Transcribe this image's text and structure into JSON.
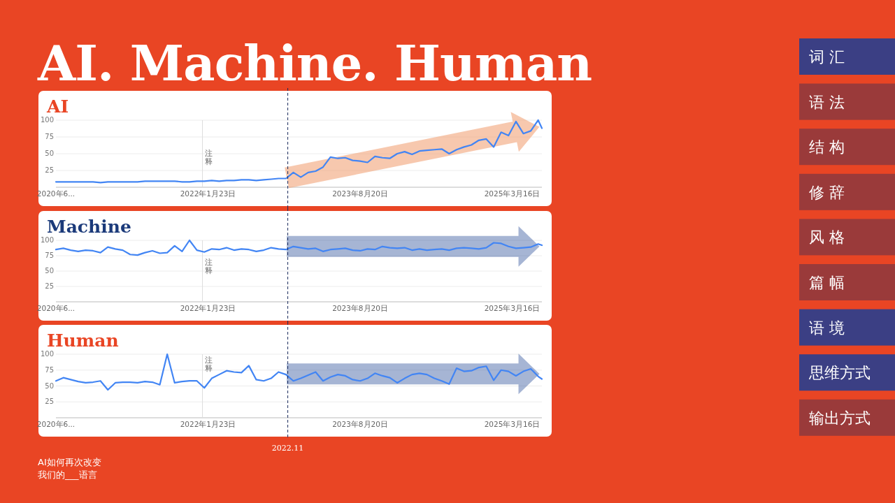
{
  "chart_data": [
    {
      "type": "other",
      "title": "AI. Machine. Human",
      "categories": [
        "词 汇",
        "语 法",
        "结 构",
        "修 辞",
        "风 格",
        "篇 幅",
        "语 境",
        "思维方式",
        "输出方式"
      ],
      "colors": [
        "#3b3f84",
        "#9a3a3a",
        "#9a3a3a",
        "#9a3a3a",
        "#9a3a3a",
        "#9a3a3a",
        "#3b3f84",
        "#3b3f84",
        "#9a3a3a"
      ],
      "annotations": [
        "AI如何再次改变",
        "我们的___语言"
      ]
    },
    {
      "type": "line",
      "title": "AI",
      "x": [
        "2020-06-28",
        "2020-07-26",
        "2020-08-23",
        "2020-09-20",
        "2020-10-18",
        "2020-11-15",
        "2020-12-13",
        "2021-01-10",
        "2021-02-07",
        "2021-03-07",
        "2021-04-04",
        "2021-05-02",
        "2021-05-30",
        "2021-06-27",
        "2021-07-25",
        "2021-08-22",
        "2021-09-19",
        "2021-10-17",
        "2021-11-14",
        "2021-12-12",
        "2022-01-09",
        "2022-02-06",
        "2022-03-06",
        "2022-04-03",
        "2022-05-01",
        "2022-05-29",
        "2022-06-26",
        "2022-07-24",
        "2022-08-21",
        "2022-09-18",
        "2022-10-16",
        "2022-11-13",
        "2022-12-11",
        "2023-01-08",
        "2023-02-05",
        "2023-03-05",
        "2023-04-02",
        "2023-04-30",
        "2023-05-28",
        "2023-06-25",
        "2023-07-23",
        "2023-08-20",
        "2023-09-17",
        "2023-10-15",
        "2023-11-12",
        "2023-12-10",
        "2024-01-07",
        "2024-02-04",
        "2024-03-03",
        "2024-03-31",
        "2024-04-28",
        "2024-05-26",
        "2024-06-23",
        "2024-07-21",
        "2024-08-18",
        "2024-09-15",
        "2024-10-13",
        "2024-11-10",
        "2024-12-08",
        "2025-01-05",
        "2025-02-02",
        "2025-03-02",
        "2025-03-30",
        "2025-04-27",
        "2025-05-25",
        "2025-06-22",
        "2025-07-06"
      ],
      "series": [
        {
          "color": "#4285f4",
          "values": [
            8,
            8,
            8,
            8,
            8,
            8,
            7,
            8,
            8,
            8,
            8,
            8,
            9,
            9,
            9,
            9,
            9,
            8,
            8,
            9,
            9,
            10,
            9,
            10,
            10,
            11,
            11,
            10,
            11,
            12,
            13,
            13,
            22,
            15,
            22,
            24,
            30,
            45,
            43,
            44,
            40,
            39,
            37,
            46,
            44,
            43,
            50,
            53,
            49,
            54,
            55,
            56,
            57,
            50,
            56,
            60,
            63,
            70,
            72,
            60,
            82,
            77,
            98,
            80,
            84,
            100,
            88
          ]
        }
      ],
      "xlim": [
        "2020-06-28",
        "2025-07-06"
      ],
      "xticks": [
        {
          "value": "2020-06-28",
          "label": "2020年6..."
        },
        {
          "value": "2022-01-23",
          "label": "2022年1月23日"
        },
        {
          "value": "2023-08-20",
          "label": "2023年8月20日"
        },
        {
          "value": "2025-03-16",
          "label": "2025年3月16日"
        }
      ],
      "ylim": [
        0,
        100
      ],
      "yticks": [
        25,
        50,
        75,
        100
      ],
      "grid": "y",
      "ref_lines": [
        {
          "axis": "x",
          "value": "2022-01-02",
          "label": "注释",
          "color": "#dddddd",
          "line_style": "solid"
        },
        {
          "axis": "x",
          "value": "2022-11-20",
          "label": null,
          "color": "#1a2a5c",
          "line_style": "dashed"
        }
      ]
    },
    {
      "type": "line",
      "title": "Machine",
      "x": [
        "2020-06-28",
        "2020-07-26",
        "2020-08-23",
        "2020-09-20",
        "2020-10-18",
        "2020-11-15",
        "2020-12-13",
        "2021-01-10",
        "2021-02-07",
        "2021-03-07",
        "2021-04-04",
        "2021-05-02",
        "2021-05-30",
        "2021-06-27",
        "2021-07-25",
        "2021-08-22",
        "2021-09-19",
        "2021-10-17",
        "2021-11-14",
        "2021-12-12",
        "2022-01-09",
        "2022-02-06",
        "2022-03-06",
        "2022-04-03",
        "2022-05-01",
        "2022-05-29",
        "2022-06-26",
        "2022-07-24",
        "2022-08-21",
        "2022-09-18",
        "2022-10-16",
        "2022-11-13",
        "2022-12-11",
        "2023-01-08",
        "2023-02-05",
        "2023-03-05",
        "2023-04-02",
        "2023-04-30",
        "2023-05-28",
        "2023-06-25",
        "2023-07-23",
        "2023-08-20",
        "2023-09-17",
        "2023-10-15",
        "2023-11-12",
        "2023-12-10",
        "2024-01-07",
        "2024-02-04",
        "2024-03-03",
        "2024-03-31",
        "2024-04-28",
        "2024-05-26",
        "2024-06-23",
        "2024-07-21",
        "2024-08-18",
        "2024-09-15",
        "2024-10-13",
        "2024-11-10",
        "2024-12-08",
        "2025-01-05",
        "2025-02-02",
        "2025-03-02",
        "2025-03-30",
        "2025-04-27",
        "2025-05-25",
        "2025-06-22",
        "2025-07-06"
      ],
      "series": [
        {
          "color": "#4285f4",
          "values": [
            85,
            87,
            84,
            82,
            84,
            83,
            80,
            89,
            86,
            84,
            77,
            76,
            80,
            83,
            79,
            80,
            91,
            82,
            100,
            84,
            81,
            86,
            85,
            88,
            84,
            86,
            85,
            82,
            84,
            88,
            86,
            85,
            90,
            88,
            86,
            87,
            82,
            85,
            86,
            87,
            84,
            83,
            86,
            85,
            90,
            88,
            87,
            88,
            84,
            86,
            84,
            85,
            86,
            84,
            87,
            88,
            87,
            86,
            88,
            96,
            95,
            90,
            87,
            88,
            89,
            94,
            92
          ]
        }
      ],
      "xlim": [
        "2020-06-28",
        "2025-07-06"
      ],
      "xticks": [
        {
          "value": "2020-06-28",
          "label": "2020年6..."
        },
        {
          "value": "2022-01-23",
          "label": "2022年1月23日"
        },
        {
          "value": "2023-08-20",
          "label": "2023年8月20日"
        },
        {
          "value": "2025-03-16",
          "label": "2025年3月16日"
        }
      ],
      "ylim": [
        0,
        100
      ],
      "yticks": [
        25,
        50,
        75,
        100
      ],
      "grid": "y",
      "ref_lines": [
        {
          "axis": "x",
          "value": "2022-01-02",
          "label": "注释",
          "color": "#dddddd",
          "line_style": "solid"
        },
        {
          "axis": "x",
          "value": "2022-11-20",
          "label": null,
          "color": "#1a2a5c",
          "line_style": "dashed"
        }
      ]
    },
    {
      "type": "line",
      "title": "Human",
      "x": [
        "2020-06-28",
        "2020-07-26",
        "2020-08-23",
        "2020-09-20",
        "2020-10-18",
        "2020-11-15",
        "2020-12-13",
        "2021-01-10",
        "2021-02-07",
        "2021-03-07",
        "2021-04-04",
        "2021-05-02",
        "2021-05-30",
        "2021-06-27",
        "2021-07-25",
        "2021-08-22",
        "2021-09-19",
        "2021-10-17",
        "2021-11-14",
        "2021-12-12",
        "2022-01-09",
        "2022-02-06",
        "2022-03-06",
        "2022-04-03",
        "2022-05-01",
        "2022-05-29",
        "2022-06-26",
        "2022-07-24",
        "2022-08-21",
        "2022-09-18",
        "2022-10-16",
        "2022-11-13",
        "2022-12-11",
        "2023-01-08",
        "2023-02-05",
        "2023-03-05",
        "2023-04-02",
        "2023-04-30",
        "2023-05-28",
        "2023-06-25",
        "2023-07-23",
        "2023-08-20",
        "2023-09-17",
        "2023-10-15",
        "2023-11-12",
        "2023-12-10",
        "2024-01-07",
        "2024-02-04",
        "2024-03-03",
        "2024-03-31",
        "2024-04-28",
        "2024-05-26",
        "2024-06-23",
        "2024-07-21",
        "2024-08-18",
        "2024-09-15",
        "2024-10-13",
        "2024-11-10",
        "2024-12-08",
        "2025-01-05",
        "2025-02-02",
        "2025-03-02",
        "2025-03-30",
        "2025-04-27",
        "2025-05-25",
        "2025-06-22",
        "2025-07-06"
      ],
      "series": [
        {
          "color": "#4285f4",
          "values": [
            58,
            63,
            60,
            57,
            55,
            56,
            58,
            44,
            55,
            56,
            56,
            55,
            57,
            56,
            52,
            100,
            55,
            57,
            58,
            58,
            47,
            62,
            68,
            74,
            72,
            71,
            82,
            60,
            58,
            62,
            72,
            68,
            58,
            62,
            67,
            72,
            58,
            64,
            68,
            66,
            60,
            58,
            62,
            70,
            66,
            63,
            55,
            62,
            68,
            70,
            68,
            62,
            58,
            53,
            78,
            73,
            74,
            79,
            81,
            59,
            75,
            73,
            66,
            73,
            77,
            65,
            61
          ]
        }
      ],
      "xlim": [
        "2020-06-28",
        "2025-07-06"
      ],
      "xticks": [
        {
          "value": "2020-06-28",
          "label": "2020年6..."
        },
        {
          "value": "2022-01-23",
          "label": "2022年1月23日"
        },
        {
          "value": "2023-08-20",
          "label": "2023年8月20日"
        },
        {
          "value": "2025-03-16",
          "label": "2025年3月16日"
        }
      ],
      "ylim": [
        0,
        100
      ],
      "yticks": [
        25,
        50,
        75,
        100
      ],
      "grid": "y",
      "ref_lines": [
        {
          "axis": "x",
          "value": "2022-01-02",
          "label": "注释",
          "color": "#dddddd",
          "line_style": "solid"
        },
        {
          "axis": "x",
          "value": "2022-11-20",
          "label": "2022.11",
          "color": "#1a2a5c",
          "line_style": "dashed"
        }
      ]
    }
  ]
}
